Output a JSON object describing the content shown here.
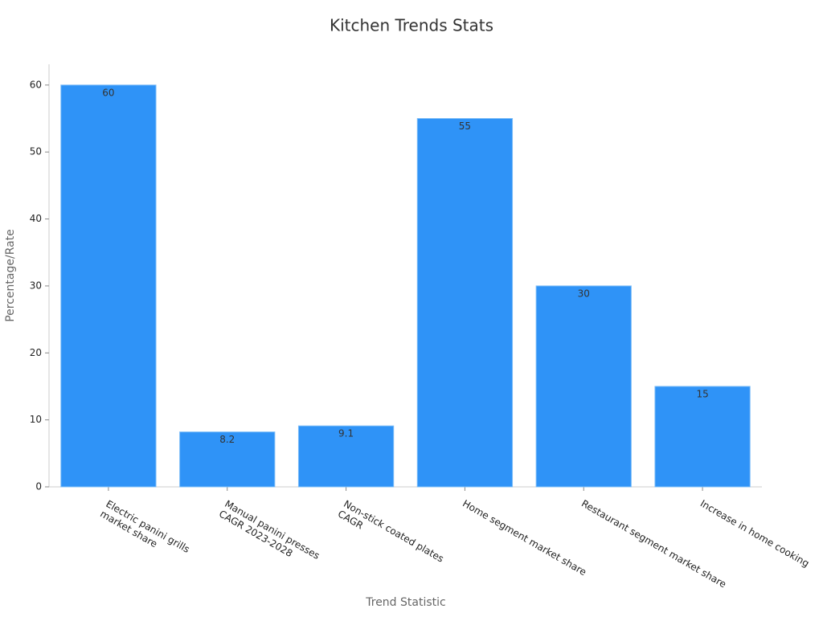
{
  "chart_data": {
    "type": "bar",
    "title": "Kitchen Trends Stats",
    "x_label": "Trend Statistic",
    "y_label": "Percentage/Rate",
    "categories": [
      "Electric panini grills\nmarket share",
      "Manual panini presses\nCAGR 2023-2028",
      "Non-stick coated plates\nCAGR",
      "Home segment market share",
      "Restaurant segment market share",
      "Increase in home cooking"
    ],
    "values": [
      60,
      8.2,
      9.1,
      55,
      30,
      15
    ],
    "color": "#2f93f7",
    "ylim": [
      0,
      63.1
    ],
    "yticks": [
      0,
      10,
      20,
      30,
      40,
      50,
      60
    ],
    "grid": false
  }
}
